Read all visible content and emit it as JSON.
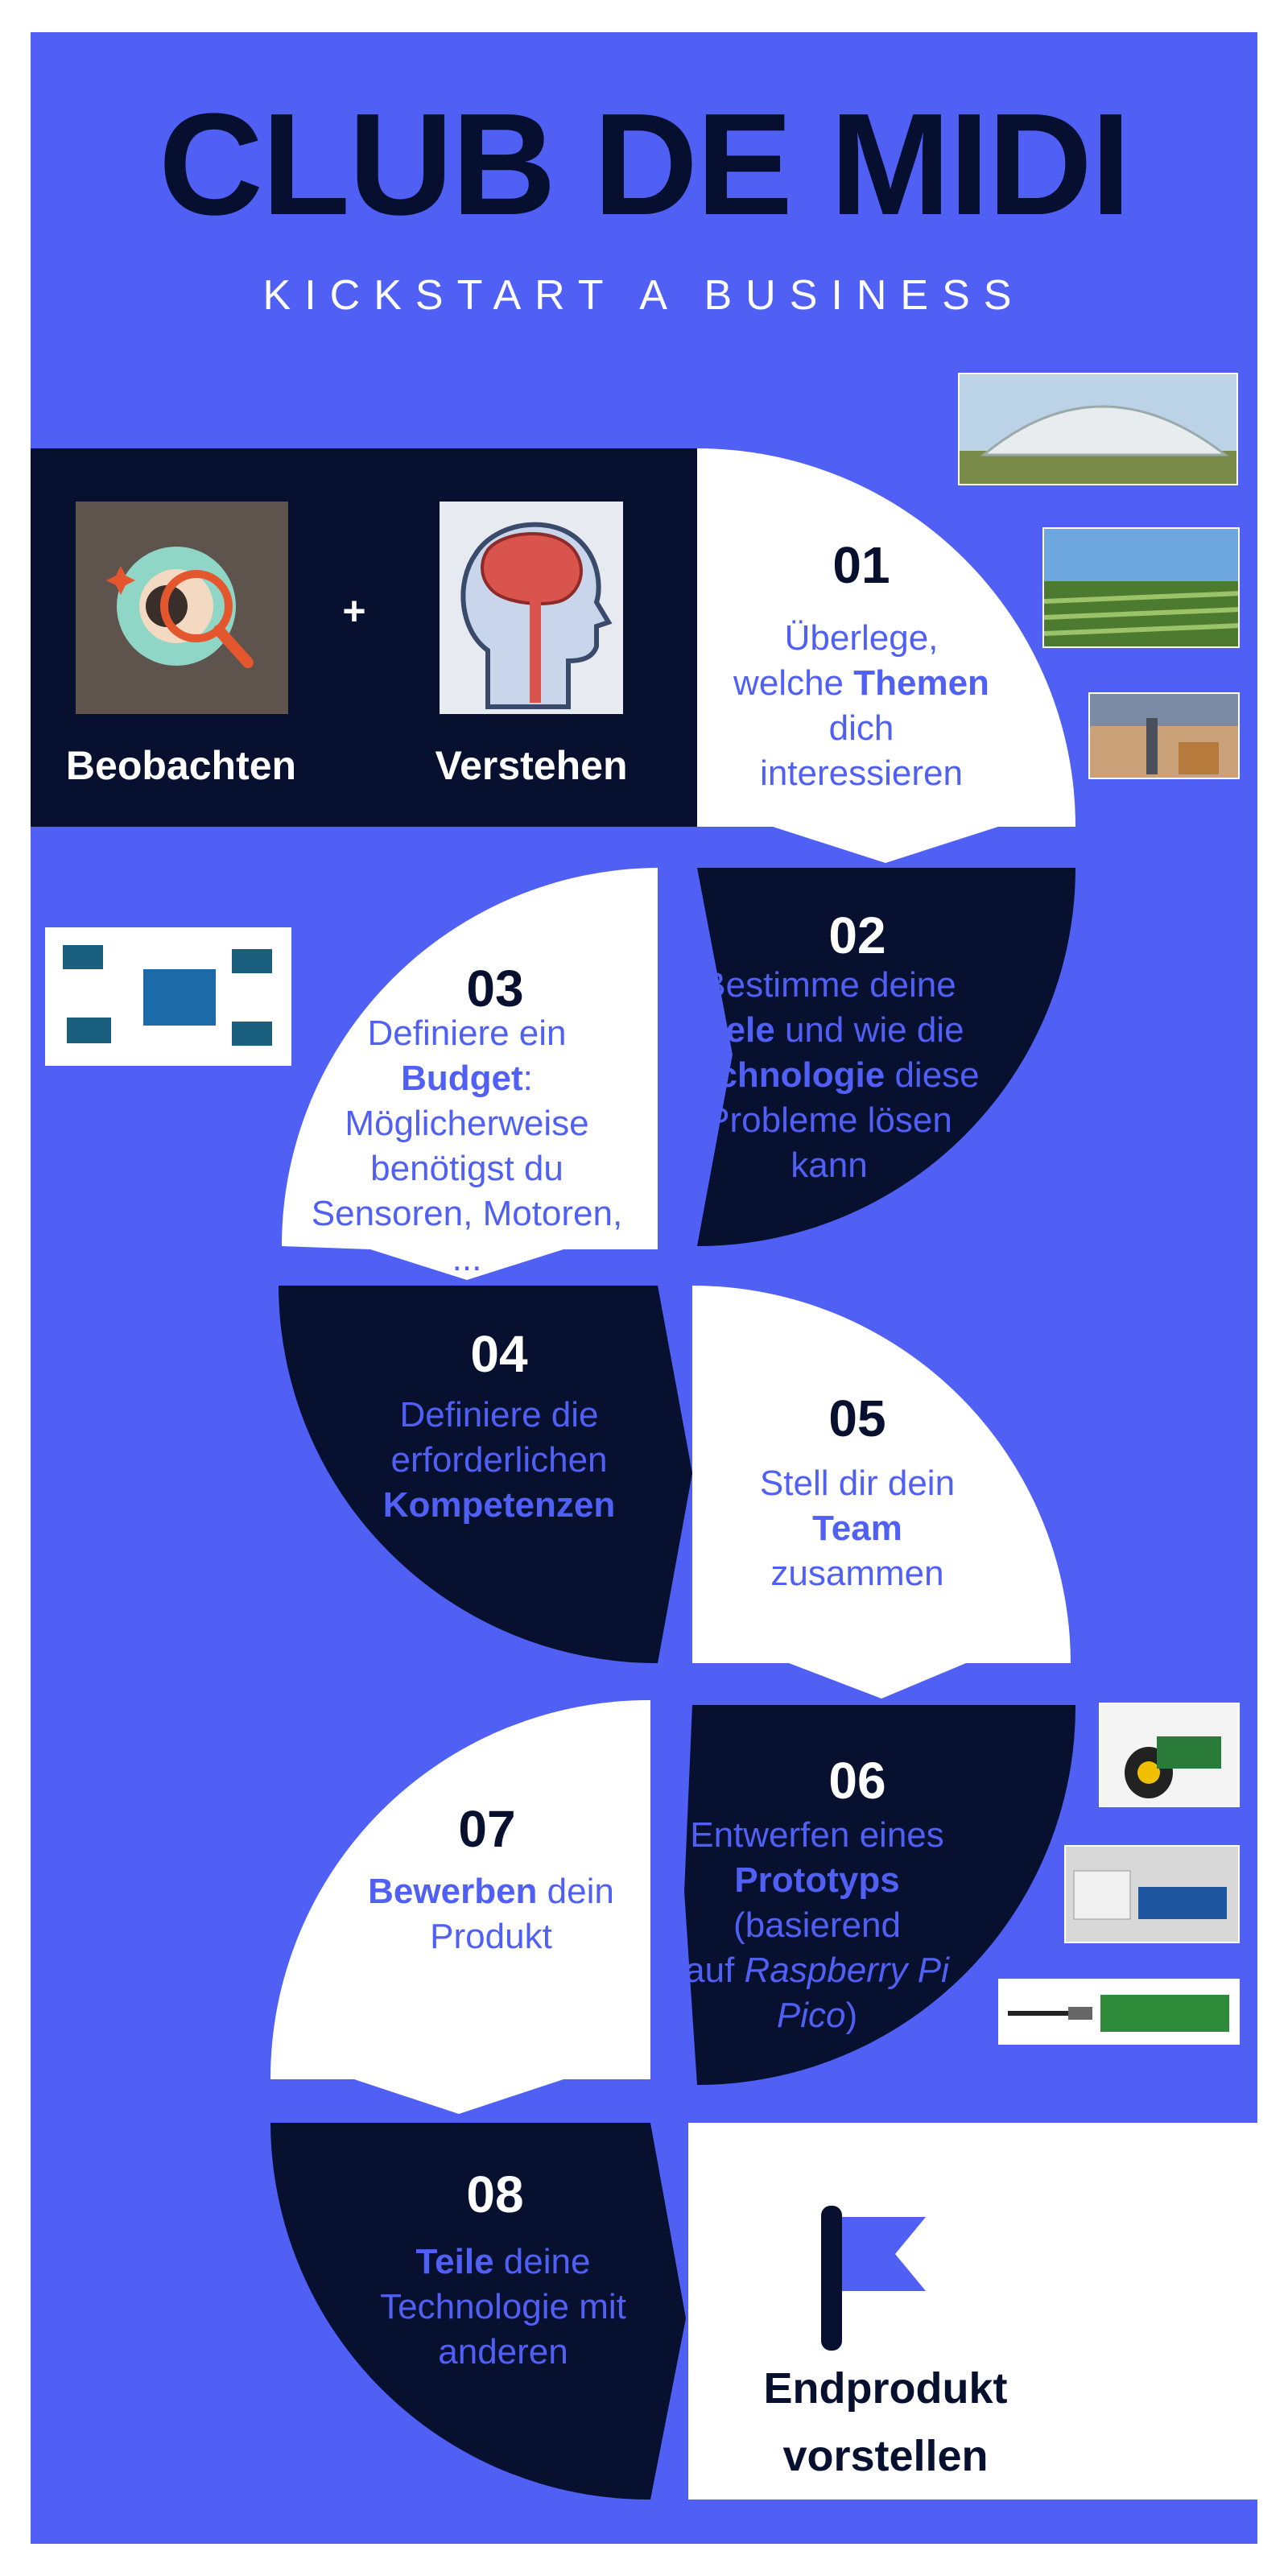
{
  "header": {
    "title": "CLUB DE MIDI",
    "subtitle": "KICKSTART A BUSINESS"
  },
  "intro": {
    "left_label": "Beobachten",
    "plus": "+",
    "right_label": "Verstehen",
    "left_icon": "eye-magnifier-icon",
    "right_icon": "brain-head-icon"
  },
  "steps": [
    {
      "num": "01",
      "parts": [
        [
          "Überlege,",
          ""
        ],
        [
          "welche ",
          ""
        ],
        [
          "Themen",
          "b"
        ],
        [
          "dich",
          ""
        ],
        [
          "interessieren",
          ""
        ]
      ]
    },
    {
      "num": "02",
      "lines": [
        "Bestimme deine",
        "Ziele und wie die",
        "Technologie diese",
        "Probleme lösen",
        "kann"
      ]
    },
    {
      "num": "03",
      "lines": [
        "Definiere ein",
        "Budget:",
        "Möglicherweise",
        "benötigst du",
        "Sensoren, Motoren,",
        "..."
      ]
    },
    {
      "num": "04",
      "lines": [
        "Definiere die",
        "erforderlichen",
        "Kompetenzen"
      ]
    },
    {
      "num": "05",
      "lines": [
        "Stell dir dein",
        "Team",
        "zusammen"
      ]
    },
    {
      "num": "06",
      "lines": [
        "Entwerfen eines",
        "Prototyps",
        "(basierend",
        "auf Raspberry Pi",
        "Pico)"
      ]
    },
    {
      "num": "07",
      "lines": [
        "Bewerben dein",
        "Produkt"
      ]
    },
    {
      "num": "08",
      "lines": [
        "Teile deine",
        "Technologie mit",
        "anderen"
      ]
    }
  ],
  "emphasis": {
    "themen": "Themen",
    "ziele": "Ziele",
    "technologie": "Technologie",
    "budget": "Budget",
    "kompetenzen": "Kompetenzen",
    "team": "Team",
    "prototyps": "Prototyps",
    "raspberry": "Raspberry Pi",
    "pico": "Pico",
    "bewerben": "Bewerben",
    "teile": "Teile"
  },
  "final": {
    "label_line1": "Endprodukt",
    "label_line2": "vorstellen",
    "icon": "flag-icon"
  },
  "colors": {
    "background": "#5060f5",
    "dark": "#081030",
    "light": "#ffffff",
    "accent": "#5060f5"
  },
  "photos": [
    "greenhouse-photo",
    "irrigation-field-photo",
    "warehouse-robot-photo",
    "arduino-sensors-photo",
    "robot-car-photo",
    "lcd-breadboard-photo",
    "raspberry-pi-pico-photo"
  ]
}
